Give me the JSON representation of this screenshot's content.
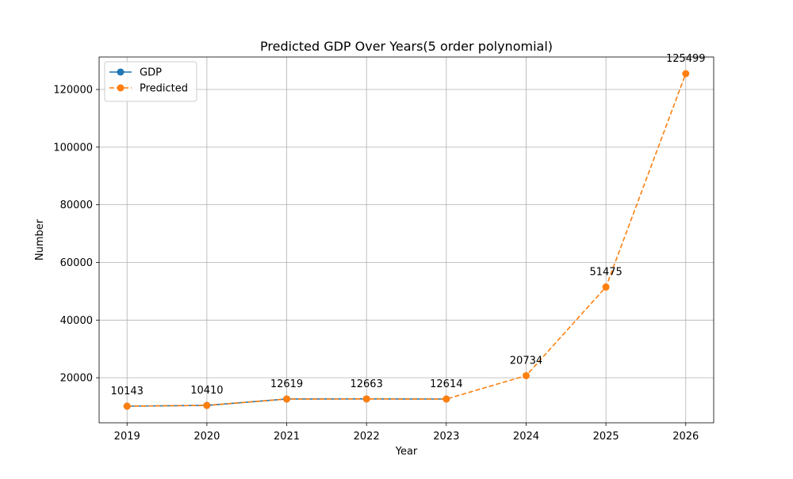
{
  "chart_data": {
    "type": "line",
    "title": "Predicted GDP Over Years(5 order polynomial)",
    "xlabel": "Year",
    "ylabel": "Number",
    "x": [
      2019,
      2020,
      2021,
      2022,
      2023,
      2024,
      2025,
      2026
    ],
    "xlim": [
      2018.65,
      2026.35
    ],
    "ylim": [
      4375,
      131267
    ],
    "yticks": [
      20000,
      40000,
      60000,
      80000,
      100000,
      120000
    ],
    "grid": true,
    "legend_position": "upper-left",
    "series": [
      {
        "name": "GDP",
        "x": [
          2019,
          2020,
          2021,
          2022,
          2023
        ],
        "values": [
          10143,
          10410,
          12619,
          12663,
          12614
        ],
        "color": "#1f77b4",
        "line_style": "solid",
        "marker": "circle"
      },
      {
        "name": "Predicted",
        "x": [
          2019,
          2020,
          2021,
          2022,
          2023,
          2024,
          2025,
          2026
        ],
        "values": [
          10143,
          10410,
          12619,
          12663,
          12614,
          20734,
          51475,
          125499
        ],
        "color": "#ff7f0e",
        "line_style": "dashed",
        "marker": "circle"
      }
    ],
    "data_labels": [
      "10143",
      "10410",
      "12619",
      "12663",
      "12614",
      "20734",
      "51475",
      "125499"
    ]
  }
}
